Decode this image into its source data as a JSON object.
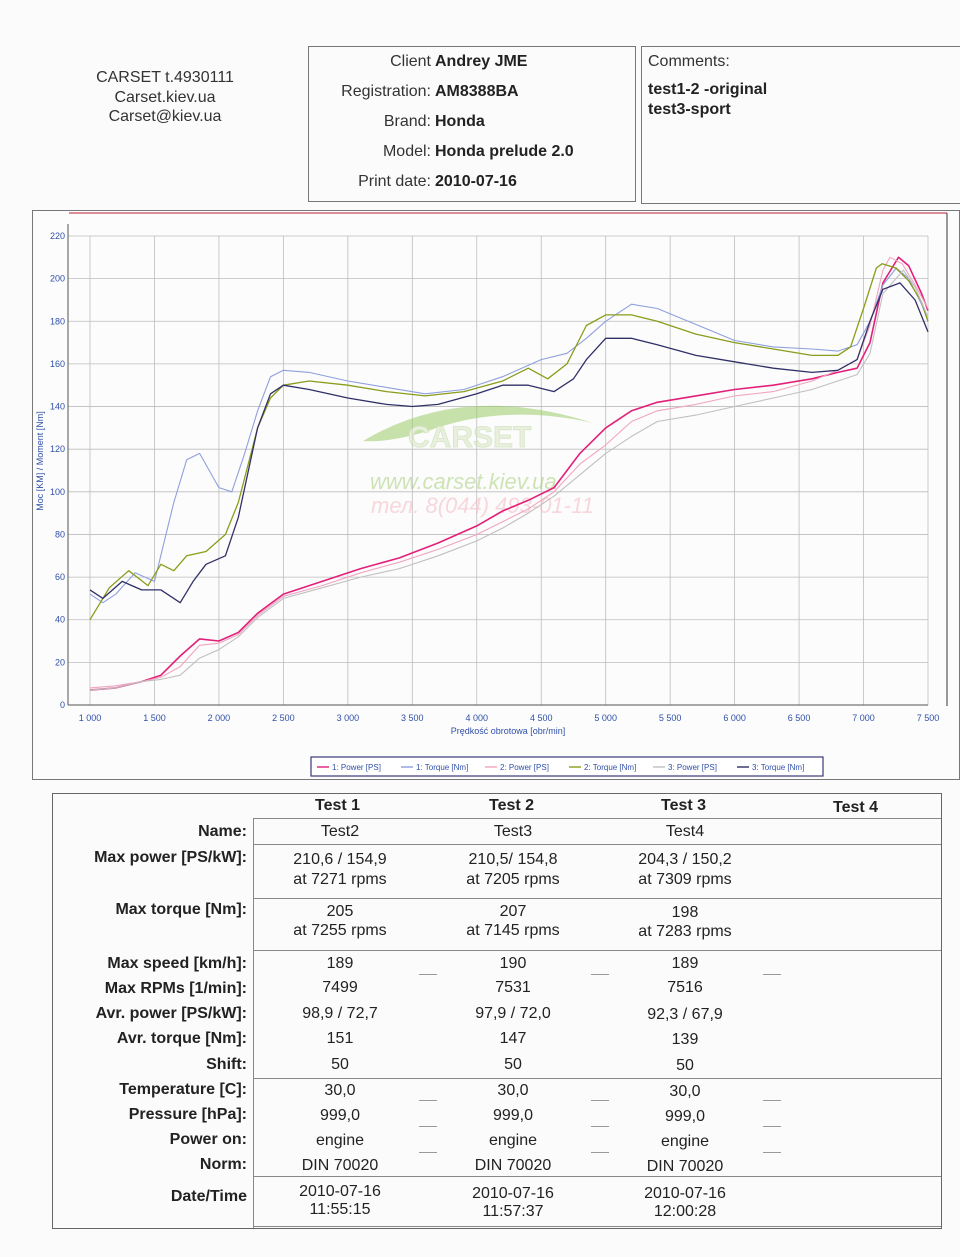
{
  "header": {
    "company": [
      "CARSET   t.4930111",
      "Carset.kiev.ua",
      "Carset@kiev.ua"
    ],
    "info": [
      {
        "label": "Client",
        "value": "Andrey JME"
      },
      {
        "label": "Registration:",
        "value": "AM8388BA"
      },
      {
        "label": "Brand:",
        "value": "Honda"
      },
      {
        "label": "Model:",
        "value": "Honda prelude 2.0"
      },
      {
        "label": "Print date:",
        "value": "2010-07-16"
      }
    ],
    "comments_title": "Comments:",
    "comments": [
      "test1-2 -original",
      "test3-sport"
    ]
  },
  "watermark": {
    "logo": "CARSET",
    "url": "www.carset.kiev.ua",
    "phone": "тел. 8(044) 493-01-11"
  },
  "chart_data": {
    "type": "line",
    "xlabel": "Prędkość obrotowa [obr/min]",
    "ylabel": "Moc [KM] / Moment [Nm]",
    "xlim": [
      1000,
      7500
    ],
    "ylim": [
      0,
      220
    ],
    "x_ticks": [
      1000,
      1500,
      2000,
      2500,
      3000,
      3500,
      4000,
      4500,
      5000,
      5500,
      6000,
      6500,
      7000,
      7500
    ],
    "x_tick_labels": [
      "1 000",
      "1 500",
      "2 000",
      "2 500",
      "3 000",
      "3 500",
      "4 000",
      "4 500",
      "5 000",
      "5 500",
      "6 000",
      "6 500",
      "7 000",
      "7 500"
    ],
    "y_ticks": [
      0,
      20,
      40,
      60,
      80,
      100,
      120,
      140,
      160,
      180,
      200,
      220
    ],
    "grid": true,
    "legend_position": "bottom",
    "series": [
      {
        "name": "1: Power [PS]",
        "color": "#e2207a",
        "width": 1.6,
        "x": [
          1000,
          1200,
          1400,
          1550,
          1700,
          1850,
          2000,
          2150,
          2300,
          2500,
          2800,
          3100,
          3400,
          3700,
          4000,
          4200,
          4400,
          4600,
          4800,
          5000,
          5200,
          5400,
          5700,
          6000,
          6300,
          6600,
          6800,
          6950,
          7050,
          7150,
          7271,
          7350,
          7450,
          7500
        ],
        "y": [
          7,
          8,
          11,
          14,
          23,
          31,
          30,
          34,
          43,
          52,
          58,
          64,
          69,
          76,
          84,
          91,
          96,
          102,
          118,
          130,
          138,
          142,
          145,
          148,
          150,
          153,
          156,
          158,
          170,
          198,
          210,
          206,
          193,
          185
        ]
      },
      {
        "name": "1: Torque [Nm]",
        "color": "#8fa0dc",
        "width": 1.1,
        "x": [
          1000,
          1100,
          1200,
          1350,
          1500,
          1650,
          1750,
          1850,
          2000,
          2100,
          2200,
          2300,
          2400,
          2500,
          2700,
          3000,
          3300,
          3600,
          3900,
          4200,
          4500,
          4700,
          4850,
          5000,
          5200,
          5400,
          5600,
          5800,
          6000,
          6300,
          6600,
          6800,
          6950,
          7050,
          7150,
          7255,
          7350,
          7450,
          7500
        ],
        "y": [
          52,
          48,
          52,
          62,
          58,
          95,
          115,
          118,
          102,
          100,
          118,
          138,
          154,
          157,
          156,
          152,
          149,
          146,
          148,
          154,
          162,
          165,
          172,
          180,
          188,
          186,
          181,
          176,
          171,
          168,
          167,
          166,
          169,
          180,
          197,
          205,
          200,
          188,
          180
        ]
      },
      {
        "name": "2: Power [PS]",
        "color": "#f0a5c0",
        "width": 1.1,
        "x": [
          1000,
          1200,
          1400,
          1550,
          1700,
          1850,
          2000,
          2150,
          2300,
          2500,
          2800,
          3100,
          3400,
          3700,
          4000,
          4200,
          4400,
          4600,
          4800,
          5000,
          5200,
          5400,
          5700,
          6000,
          6300,
          6600,
          6800,
          6950,
          7050,
          7150,
          7205,
          7300,
          7400,
          7500
        ],
        "y": [
          8,
          9,
          11,
          13,
          18,
          28,
          29,
          33,
          42,
          51,
          56,
          62,
          67,
          73,
          80,
          86,
          92,
          100,
          113,
          122,
          133,
          138,
          141,
          145,
          147,
          152,
          157,
          162,
          178,
          204,
          210,
          207,
          197,
          186
        ]
      },
      {
        "name": "2: Torque [Nm]",
        "color": "#8a9d1a",
        "width": 1.3,
        "x": [
          1000,
          1150,
          1300,
          1450,
          1550,
          1650,
          1750,
          1900,
          2050,
          2150,
          2300,
          2400,
          2500,
          2700,
          3000,
          3300,
          3600,
          3900,
          4200,
          4400,
          4550,
          4700,
          4850,
          5000,
          5200,
          5400,
          5700,
          6000,
          6300,
          6600,
          6800,
          6900,
          7000,
          7100,
          7145,
          7250,
          7350,
          7450,
          7500
        ],
        "y": [
          40,
          55,
          63,
          56,
          66,
          63,
          70,
          72,
          80,
          95,
          130,
          144,
          150,
          152,
          150,
          147,
          145,
          147,
          152,
          158,
          153,
          160,
          178,
          183,
          183,
          180,
          174,
          170,
          167,
          164,
          164,
          168,
          186,
          205,
          207,
          205,
          199,
          189,
          180
        ]
      },
      {
        "name": "3: Power [PS]",
        "color": "#c0c0c0",
        "width": 1.1,
        "x": [
          1000,
          1200,
          1400,
          1550,
          1700,
          1850,
          2000,
          2150,
          2300,
          2500,
          2800,
          3100,
          3400,
          3700,
          4000,
          4200,
          4400,
          4600,
          4800,
          5000,
          5200,
          5400,
          5700,
          6000,
          6300,
          6600,
          6800,
          6950,
          7050,
          7150,
          7309,
          7400,
          7500
        ],
        "y": [
          7,
          8,
          11,
          12,
          14,
          22,
          26,
          32,
          41,
          50,
          55,
          60,
          64,
          70,
          77,
          83,
          90,
          98,
          108,
          118,
          126,
          133,
          136,
          140,
          144,
          148,
          152,
          155,
          165,
          193,
          204,
          196,
          182
        ]
      },
      {
        "name": "3: Torque [Nm]",
        "color": "#303068",
        "width": 1.3,
        "x": [
          1000,
          1100,
          1250,
          1400,
          1550,
          1700,
          1800,
          1900,
          2050,
          2150,
          2300,
          2400,
          2500,
          2700,
          3000,
          3300,
          3500,
          3700,
          4000,
          4200,
          4400,
          4600,
          4750,
          4850,
          5000,
          5200,
          5400,
          5700,
          6000,
          6300,
          6600,
          6800,
          6950,
          7050,
          7150,
          7283,
          7400,
          7500
        ],
        "y": [
          54,
          50,
          58,
          54,
          54,
          48,
          58,
          66,
          70,
          88,
          130,
          146,
          150,
          148,
          144,
          141,
          140,
          141,
          146,
          150,
          150,
          147,
          153,
          162,
          172,
          172,
          169,
          164,
          161,
          158,
          156,
          157,
          162,
          180,
          195,
          198,
          190,
          175
        ]
      }
    ]
  },
  "results": {
    "columns": [
      "Test 1",
      "Test 2",
      "Test 3",
      "Test 4"
    ],
    "labels": {
      "name": "Name:",
      "max_power": "Max power [PS/kW]:",
      "max_torque": "Max torque [Nm]:",
      "max_speed": "Max speed [km/h]:",
      "max_rpm": "Max RPMs [1/min]:",
      "avr_power": "Avr. power [PS/kW]:",
      "avr_torque": "Avr. torque [Nm]:",
      "shift": "Shift:",
      "temperature": "Temperature [C]:",
      "pressure": "Pressure [hPa]:",
      "power_on": "Power on:",
      "norm": "Norm:",
      "datetime": "Date/Time"
    },
    "tests": [
      {
        "name": "Test2",
        "max_power": "210,6 / 154,9",
        "max_power_at": "at 7271 rpms",
        "max_torque": "205",
        "max_torque_at": "at 7255 rpms",
        "max_speed": "189",
        "max_rpm": "7499",
        "avr_power": "98,9 / 72,7",
        "avr_torque": "151",
        "shift": "50",
        "temperature": "30,0",
        "pressure": "999,0",
        "power_on": "engine",
        "norm": "DIN 70020",
        "date": "2010-07-16",
        "time": "11:55:15"
      },
      {
        "name": "Test3",
        "max_power": "210,5/ 154,8",
        "max_power_at": "at 7205 rpms",
        "max_torque": "207",
        "max_torque_at": "at 7145 rpms",
        "max_speed": "190",
        "max_rpm": "7531",
        "avr_power": "97,9 / 72,0",
        "avr_torque": "147",
        "shift": "50",
        "temperature": "30,0",
        "pressure": "999,0",
        "power_on": "engine",
        "norm": "DIN 70020",
        "date": "2010-07-16",
        "time": "11:57:37"
      },
      {
        "name": "Test4",
        "max_power": "204,3 / 150,2",
        "max_power_at": "at 7309 rpms",
        "max_torque": "198",
        "max_torque_at": "at 7283 rpms",
        "max_speed": "189",
        "max_rpm": "7516",
        "avr_power": "92,3 / 67,9",
        "avr_torque": "139",
        "shift": "50",
        "temperature": "30,0",
        "pressure": "999,0",
        "power_on": "engine",
        "norm": "DIN 70020",
        "date": "2010-07-16",
        "time": "12:00:28"
      }
    ]
  }
}
